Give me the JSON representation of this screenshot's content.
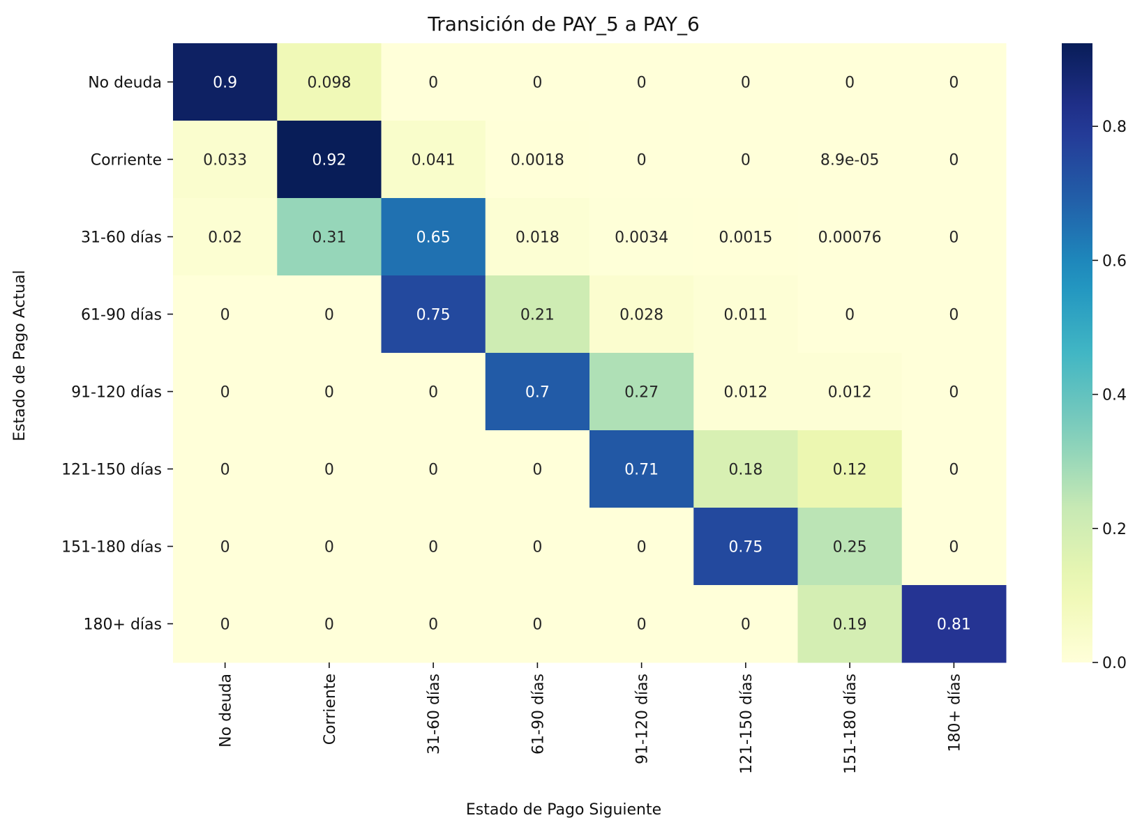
{
  "chart_data": {
    "type": "heatmap",
    "title": "Transición de PAY_5 a PAY_6",
    "xlabel": "Estado de Pago Siguiente",
    "ylabel": "Estado de Pago Actual",
    "x_categories": [
      "No deuda",
      "Corriente",
      "31-60 días",
      "61-90 días",
      "91-120 días",
      "121-150 días",
      "151-180 días",
      "180+ días"
    ],
    "y_categories": [
      "No deuda",
      "Corriente",
      "31-60 días",
      "61-90 días",
      "91-120 días",
      "121-150 días",
      "151-180 días",
      "180+ días"
    ],
    "values": [
      [
        0.902,
        0.098,
        0,
        0,
        0,
        0,
        0,
        0
      ],
      [
        0.033,
        0.924,
        0.041,
        0.0018,
        0,
        0,
        8.9e-05,
        0
      ],
      [
        0.02,
        0.31,
        0.65,
        0.018,
        0.0034,
        0.0015,
        0.00076,
        0
      ],
      [
        0,
        0,
        0.75,
        0.21,
        0.028,
        0.011,
        0,
        0
      ],
      [
        0,
        0,
        0,
        0.7,
        0.27,
        0.012,
        0.012,
        0
      ],
      [
        0,
        0,
        0,
        0,
        0.71,
        0.18,
        0.12,
        0
      ],
      [
        0,
        0,
        0,
        0,
        0,
        0.75,
        0.25,
        0
      ],
      [
        0,
        0,
        0,
        0,
        0,
        0,
        0.19,
        0.81
      ]
    ],
    "annotations": [
      [
        "0.9",
        "0.098",
        "0",
        "0",
        "0",
        "0",
        "0",
        "0"
      ],
      [
        "0.033",
        "0.92",
        "0.041",
        "0.0018",
        "0",
        "0",
        "8.9e-05",
        "0"
      ],
      [
        "0.02",
        "0.31",
        "0.65",
        "0.018",
        "0.0034",
        "0.0015",
        "0.00076",
        "0"
      ],
      [
        "0",
        "0",
        "0.75",
        "0.21",
        "0.028",
        "0.011",
        "0",
        "0"
      ],
      [
        "0",
        "0",
        "0",
        "0.7",
        "0.27",
        "0.012",
        "0.012",
        "0"
      ],
      [
        "0",
        "0",
        "0",
        "0",
        "0.71",
        "0.18",
        "0.12",
        "0"
      ],
      [
        "0",
        "0",
        "0",
        "0",
        "0",
        "0.75",
        "0.25",
        "0"
      ],
      [
        "0",
        "0",
        "0",
        "0",
        "0",
        "0",
        "0.19",
        "0.81"
      ]
    ],
    "colormap": "YlGnBu",
    "vmin": 0,
    "vmax": 0.924,
    "colorbar_ticks": [
      0.0,
      0.2,
      0.4,
      0.6,
      0.8
    ],
    "colorbar_tick_labels": [
      "0.0",
      "0.2",
      "0.4",
      "0.6",
      "0.8"
    ]
  }
}
